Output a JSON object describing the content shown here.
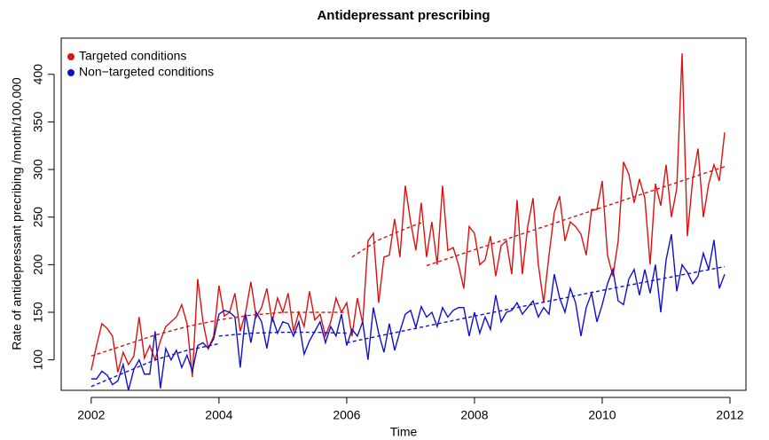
{
  "chart_data": {
    "type": "line",
    "title": "Antidepressant prescribing",
    "x_label": "Time",
    "y_label": "Rate of antidepressant precribing /month/100,000",
    "xlim": [
      2001.53,
      2012.25
    ],
    "xticks": [
      2002,
      2004,
      2006,
      2008,
      2010,
      2012
    ],
    "ylim": [
      68,
      438
    ],
    "yticks": [
      100,
      150,
      200,
      250,
      300,
      350,
      400
    ],
    "grid": false,
    "legend": "top-left",
    "trend_style": "dashed",
    "x": [
      2002,
      2002.083,
      2002.167,
      2002.25,
      2002.333,
      2002.417,
      2002.5,
      2002.583,
      2002.667,
      2002.75,
      2002.833,
      2002.917,
      2003,
      2003.083,
      2003.167,
      2003.25,
      2003.333,
      2003.417,
      2003.5,
      2003.583,
      2003.667,
      2003.75,
      2003.833,
      2003.917,
      2004,
      2004.083,
      2004.167,
      2004.25,
      2004.333,
      2004.417,
      2004.5,
      2004.583,
      2004.667,
      2004.75,
      2004.833,
      2004.917,
      2005,
      2005.083,
      2005.167,
      2005.25,
      2005.333,
      2005.417,
      2005.5,
      2005.583,
      2005.667,
      2005.75,
      2005.833,
      2005.917,
      2006,
      2006.083,
      2006.167,
      2006.25,
      2006.333,
      2006.417,
      2006.5,
      2006.583,
      2006.667,
      2006.75,
      2006.833,
      2006.917,
      2007,
      2007.083,
      2007.167,
      2007.25,
      2007.333,
      2007.417,
      2007.5,
      2007.583,
      2007.667,
      2007.75,
      2007.833,
      2007.917,
      2008,
      2008.083,
      2008.167,
      2008.25,
      2008.333,
      2008.417,
      2008.5,
      2008.583,
      2008.667,
      2008.75,
      2008.833,
      2008.917,
      2009,
      2009.083,
      2009.167,
      2009.25,
      2009.333,
      2009.417,
      2009.5,
      2009.583,
      2009.667,
      2009.75,
      2009.833,
      2009.917,
      2010,
      2010.083,
      2010.167,
      2010.25,
      2010.333,
      2010.417,
      2010.5,
      2010.583,
      2010.667,
      2010.75,
      2010.833,
      2010.917,
      2011,
      2011.083,
      2011.167,
      2011.25,
      2011.333,
      2011.417,
      2011.5,
      2011.583,
      2011.667,
      2011.75,
      2011.833,
      2011.917
    ],
    "series": [
      {
        "name": "Targeted conditions",
        "color": "#dd1111",
        "values": [
          89,
          115,
          138,
          133,
          125,
          87,
          108,
          95,
          104,
          145,
          102,
          115,
          100,
          120,
          135,
          140,
          145,
          158,
          138,
          82,
          185,
          140,
          112,
          125,
          178,
          146,
          150,
          170,
          130,
          150,
          182,
          145,
          155,
          175,
          140,
          165,
          150,
          170,
          130,
          150,
          135,
          172,
          142,
          148,
          125,
          140,
          165,
          150,
          160,
          125,
          165,
          138,
          225,
          233,
          160,
          208,
          210,
          248,
          208,
          283,
          245,
          215,
          265,
          208,
          245,
          200,
          283,
          215,
          218,
          200,
          175,
          240,
          233,
          200,
          205,
          230,
          188,
          220,
          225,
          190,
          268,
          190,
          240,
          270,
          200,
          160,
          210,
          255,
          272,
          225,
          245,
          240,
          232,
          210,
          258,
          258,
          288,
          210,
          188,
          225,
          308,
          295,
          265,
          290,
          270,
          200,
          285,
          262,
          305,
          250,
          280,
          422,
          230,
          290,
          322,
          250,
          285,
          305,
          288,
          339
        ]
      },
      {
        "name": "Non−targeted conditions",
        "color": "#1111cc",
        "values": [
          80,
          80,
          88,
          84,
          74,
          78,
          95,
          68,
          90,
          100,
          85,
          85,
          130,
          70,
          112,
          100,
          110,
          92,
          105,
          88,
          115,
          118,
          112,
          122,
          148,
          152,
          150,
          145,
          92,
          148,
          118,
          150,
          140,
          112,
          145,
          128,
          140,
          138,
          125,
          140,
          106,
          120,
          130,
          140,
          118,
          135,
          125,
          148,
          115,
          132,
          125,
          140,
          100,
          155,
          128,
          108,
          138,
          110,
          130,
          148,
          152,
          134,
          156,
          145,
          150,
          135,
          155,
          145,
          152,
          155,
          155,
          125,
          150,
          128,
          145,
          132,
          168,
          140,
          150,
          152,
          160,
          148,
          155,
          162,
          145,
          155,
          148,
          190,
          165,
          150,
          175,
          160,
          125,
          155,
          170,
          140,
          158,
          180,
          195,
          162,
          158,
          185,
          195,
          168,
          195,
          170,
          200,
          150,
          205,
          232,
          172,
          200,
          192,
          180,
          188,
          212,
          195,
          226,
          175,
          190
        ]
      }
    ],
    "trends": [
      {
        "color": "#dd1111",
        "x": [
          2002,
          2002.5,
          2003,
          2003.5,
          2004,
          2004.5,
          2005,
          2005.5,
          2006
        ],
        "values": [
          104,
          115,
          126,
          135,
          142,
          147,
          150,
          150,
          150
        ]
      },
      {
        "color": "#dd1111",
        "x": [
          2006.083,
          2006.5,
          2007,
          2007.167
        ],
        "values": [
          208,
          226,
          240,
          244
        ]
      },
      {
        "color": "#dd1111",
        "x": [
          2007.25,
          2011.917
        ],
        "values": [
          199,
          303
        ]
      },
      {
        "color": "#1111cc",
        "x": [
          2002,
          2002.5,
          2003,
          2003.5,
          2004
        ],
        "values": [
          72,
          86,
          100,
          110,
          117
        ]
      },
      {
        "color": "#1111cc",
        "x": [
          2004,
          2004.5,
          2005,
          2005.5,
          2006
        ],
        "values": [
          125,
          128,
          129,
          129,
          128
        ]
      },
      {
        "color": "#1111cc",
        "x": [
          2006,
          2008,
          2010,
          2011.917
        ],
        "values": [
          118,
          146,
          173,
          198
        ]
      }
    ]
  }
}
